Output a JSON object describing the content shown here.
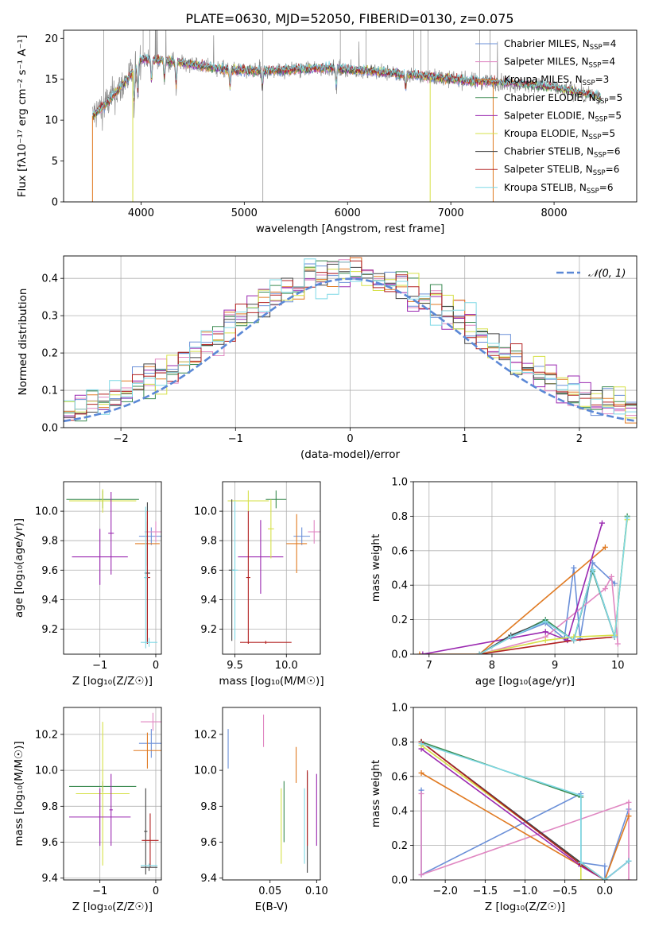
{
  "figure_title": "PLATE=0630, MJD=52050, FIBERID=0130, z=0.075",
  "colors": {
    "c0": "#6a8fd8",
    "c1": "#e087c2",
    "c2": "#e07a22",
    "c3": "#3a8a50",
    "c4": "#9a28b0",
    "c5": "#d6e048",
    "c6": "#444444",
    "c7": "#b22020",
    "c8": "#7fd9e6",
    "obs": "#888888",
    "gauss": "#5b88d6",
    "grid": "#b0b0b0"
  },
  "chart_data": [
    {
      "id": "spectrum",
      "type": "line",
      "title": "PLATE=0630, MJD=52050, FIBERID=0130, z=0.075",
      "xlabel": "wavelength [Angstrom, rest frame]",
      "ylabel": "Flux [fλ10⁻¹⁷ erg cm⁻² s⁻¹ A⁻¹]",
      "xlim": [
        3250,
        8800
      ],
      "ylim": [
        0,
        21
      ],
      "xticks": [
        4000,
        5000,
        6000,
        7000,
        8000
      ],
      "yticks": [
        0,
        5,
        10,
        15,
        20
      ],
      "grid": false,
      "legend_position": "top-right",
      "continuum_points": [
        [
          3530,
          10.5
        ],
        [
          3700,
          12.5
        ],
        [
          3900,
          15.5
        ],
        [
          4000,
          17.5
        ],
        [
          4300,
          17.2
        ],
        [
          4800,
          16.2
        ],
        [
          5200,
          16
        ],
        [
          5800,
          16.4
        ],
        [
          6300,
          15.9
        ],
        [
          6800,
          15.3
        ],
        [
          7200,
          14.8
        ],
        [
          7600,
          14.5
        ],
        [
          8000,
          14.0
        ],
        [
          8450,
          12.8
        ]
      ],
      "absorption_features": [
        [
          3934,
          4.0
        ],
        [
          3969,
          3.5
        ],
        [
          4102,
          2.5
        ],
        [
          4227,
          2.0
        ],
        [
          4340,
          2.8
        ],
        [
          4861,
          2.0
        ],
        [
          5175,
          2.0
        ],
        [
          5890,
          2.0
        ],
        [
          6563,
          1.5
        ]
      ],
      "bad_pixels": [
        3530,
        3920,
        6800,
        7410
      ],
      "series": [
        {
          "name": "Chabrier MILES",
          "nssp": "4",
          "color_key": "c0",
          "library": "MILES"
        },
        {
          "name": "Salpeter MILES",
          "nssp": "4",
          "color_key": "c1",
          "library": "MILES"
        },
        {
          "name": "Kroupa MILES",
          "nssp": "3",
          "color_key": "c2",
          "library": "MILES"
        },
        {
          "name": "Chabrier ELODIE",
          "nssp": "5",
          "color_key": "c3",
          "library": "ELODIE"
        },
        {
          "name": "Salpeter ELODIE",
          "nssp": "5",
          "color_key": "c4",
          "library": "ELODIE"
        },
        {
          "name": "Kroupa ELODIE",
          "nssp": "5",
          "color_key": "c5",
          "library": "ELODIE"
        },
        {
          "name": "Chabrier STELIB",
          "nssp": "6",
          "color_key": "c6",
          "library": "STELIB"
        },
        {
          "name": "Salpeter STELIB",
          "nssp": "6",
          "color_key": "c7",
          "library": "STELIB"
        },
        {
          "name": "Kroupa STELIB",
          "nssp": "6",
          "color_key": "c8",
          "library": "STELIB"
        }
      ]
    },
    {
      "id": "residuals",
      "type": "step",
      "xlabel": "(data-model)/error",
      "ylabel": "Normed distribution",
      "xlim": [
        -2.5,
        2.5
      ],
      "ylim": [
        0,
        0.46
      ],
      "xticks": [
        -2,
        -1,
        0,
        1,
        2
      ],
      "yticks": [
        0.0,
        0.1,
        0.2,
        0.3,
        0.4
      ],
      "grid": true,
      "bin_width": 0.1,
      "legend": "𝒩(0, 1)",
      "legend_position": "top-right"
    },
    {
      "id": "age_vs_Z",
      "type": "errorbar",
      "xlabel": "Z [log₁₀(Z/Z☉)]",
      "ylabel": "age  [log₁₀(age/yr)]",
      "xlim": [
        -1.65,
        0.1
      ],
      "ylim": [
        9.03,
        10.2
      ],
      "xticks": [
        -1,
        0
      ],
      "yticks": [
        9.2,
        9.4,
        9.6,
        9.8,
        10.0
      ],
      "grid": true,
      "points": [
        {
          "c": "c0",
          "x": -0.08,
          "xerr": 0.22,
          "y": 9.83,
          "yerr": 0.06
        },
        {
          "c": "c1",
          "x": 0.0,
          "xerr": 0.2,
          "y": 9.86,
          "yerr": 0.07
        },
        {
          "c": "c2",
          "x": -0.15,
          "xerr": 0.22,
          "y": 9.78,
          "yerr": 0.15
        },
        {
          "c": "c3",
          "x": -0.95,
          "xerr": 0.65,
          "y": 10.08,
          "yerr": 0.06
        },
        {
          "c": "c4",
          "x": -1.0,
          "xerr": 0.5,
          "y": 9.69,
          "yerr": 0.19
        },
        {
          "c": "c5",
          "x": -0.95,
          "xerr": 0.6,
          "y": 10.07,
          "yerr": 0.08
        },
        {
          "c": "c4",
          "x": -0.8,
          "xerr": 0.05,
          "y": 9.85,
          "yerr": 0.28
        },
        {
          "c": "c6",
          "x": -0.15,
          "xerr": 0.05,
          "y": 9.58,
          "yerr": 0.48
        },
        {
          "c": "c7",
          "x": -0.15,
          "xerr": 0.05,
          "y": 9.55,
          "yerr": 0.45
        },
        {
          "c": "c8",
          "x": -0.12,
          "xerr": 0.15,
          "y": 9.11,
          "yerr": 0.03
        },
        {
          "c": "c8",
          "x": -0.18,
          "xerr": 0.03,
          "y": 9.55,
          "yerr": 0.48
        }
      ]
    },
    {
      "id": "age_vs_mass",
      "type": "errorbar",
      "xlabel": "mass [log₁₀(M/M☉)]",
      "ylabel": "",
      "xlim": [
        9.38,
        10.33
      ],
      "ylim": [
        9.03,
        10.2
      ],
      "xticks": [
        9.5,
        10.0
      ],
      "yticks": [
        9.2,
        9.4,
        9.6,
        9.8,
        10.0
      ],
      "grid": true,
      "points": [
        {
          "c": "c0",
          "x": 10.15,
          "xerr": 0.08,
          "y": 9.83,
          "yerr": 0.06
        },
        {
          "c": "c1",
          "x": 10.27,
          "xerr": 0.06,
          "y": 9.86,
          "yerr": 0.08
        },
        {
          "c": "c2",
          "x": 10.1,
          "xerr": 0.1,
          "y": 9.78,
          "yerr": 0.2
        },
        {
          "c": "c3",
          "x": 9.9,
          "xerr": 0.1,
          "y": 10.08,
          "yerr": 0.06
        },
        {
          "c": "c4",
          "x": 9.75,
          "xerr": 0.22,
          "y": 9.69,
          "yerr": 0.25
        },
        {
          "c": "c5",
          "x": 9.63,
          "xerr": 0.2,
          "y": 10.07,
          "yerr": 0.07
        },
        {
          "c": "c5",
          "x": 9.85,
          "xerr": 0.03,
          "y": 9.88,
          "yerr": 0.2
        },
        {
          "c": "c6",
          "x": 9.47,
          "xerr": 0.03,
          "y": 9.6,
          "yerr": 0.48
        },
        {
          "c": "c7",
          "x": 9.63,
          "xerr": 0.02,
          "y": 9.55,
          "yerr": 0.45
        },
        {
          "c": "c7",
          "x": 9.8,
          "xerr": 0.25,
          "y": 9.11,
          "yerr": 0.01
        },
        {
          "c": "c8",
          "x": 9.5,
          "xerr": 0.03,
          "y": 9.6,
          "yerr": 0.47
        }
      ]
    },
    {
      "id": "weight_vs_age",
      "type": "line",
      "xlabel": "age  [log₁₀(age/yr)]",
      "ylabel": "mass weight",
      "xlim": [
        6.75,
        10.3
      ],
      "ylim": [
        0,
        1.0
      ],
      "xticks": [
        7,
        8,
        9,
        10
      ],
      "yticks": [
        0.0,
        0.2,
        0.4,
        0.6,
        0.8,
        1.0
      ],
      "grid": true,
      "series": [
        {
          "c": "c0",
          "x": [
            7.8,
            8.3,
            8.85,
            9.15,
            9.3,
            9.4,
            9.6,
            9.95
          ],
          "y": [
            0.0,
            0.1,
            0.18,
            0.09,
            0.5,
            0.09,
            0.53,
            0.41
          ]
        },
        {
          "c": "c1",
          "x": [
            7.8,
            8.85,
            9.8,
            9.9,
            10.0
          ],
          "y": [
            0.0,
            0.1,
            0.38,
            0.45,
            0.06
          ]
        },
        {
          "c": "c2",
          "x": [
            6.85,
            7.8,
            9.8
          ],
          "y": [
            0.0,
            0.0,
            0.62
          ]
        },
        {
          "c": "c3",
          "x": [
            7.8,
            8.3,
            8.85,
            9.3,
            9.6,
            9.95,
            10.15
          ],
          "y": [
            0.0,
            0.1,
            0.2,
            0.08,
            0.48,
            0.1,
            0.8
          ]
        },
        {
          "c": "c4",
          "x": [
            6.9,
            8.85,
            9.2,
            9.75
          ],
          "y": [
            0.0,
            0.13,
            0.08,
            0.76
          ]
        },
        {
          "c": "c5",
          "x": [
            7.8,
            8.85,
            9.3,
            9.95,
            10.15
          ],
          "y": [
            0.0,
            0.08,
            0.1,
            0.11,
            0.78
          ]
        },
        {
          "c": "c6",
          "x": [
            7.8,
            8.3,
            8.85,
            9.3,
            9.6,
            9.95
          ],
          "y": [
            0.0,
            0.11,
            0.19,
            0.08,
            0.49,
            0.1
          ]
        },
        {
          "c": "c7",
          "x": [
            7.8,
            9.3,
            9.95
          ],
          "y": [
            0.0,
            0.08,
            0.1
          ]
        },
        {
          "c": "c8",
          "x": [
            7.8,
            8.3,
            8.85,
            9.3,
            9.6,
            9.95,
            10.15
          ],
          "y": [
            0.0,
            0.1,
            0.19,
            0.08,
            0.49,
            0.1,
            0.79
          ]
        }
      ]
    },
    {
      "id": "mass_vs_Z",
      "type": "errorbar",
      "xlabel": "Z [log₁₀(Z/Z☉)]",
      "ylabel": "mass [log₁₀(M/M☉)]",
      "xlim": [
        -1.65,
        0.1
      ],
      "ylim": [
        9.39,
        10.35
      ],
      "xticks": [
        -1,
        0
      ],
      "yticks": [
        9.4,
        9.6,
        9.8,
        10.0,
        10.2
      ],
      "grid": true,
      "points": [
        {
          "c": "c0",
          "x": -0.08,
          "xerr": 0.22,
          "y": 10.15,
          "yerr": 0.08
        },
        {
          "c": "c1",
          "x": -0.05,
          "xerr": 0.22,
          "y": 10.27,
          "yerr": 0.05
        },
        {
          "c": "c2",
          "x": -0.15,
          "xerr": 0.25,
          "y": 10.11,
          "yerr": 0.1
        },
        {
          "c": "c3",
          "x": -0.95,
          "xerr": 0.6,
          "y": 9.91,
          "yerr": 0.03
        },
        {
          "c": "c5",
          "x": -0.95,
          "xerr": 0.48,
          "y": 9.87,
          "yerr": 0.4
        },
        {
          "c": "c4",
          "x": -1.0,
          "xerr": 0.55,
          "y": 9.74,
          "yerr": 0.16
        },
        {
          "c": "c4",
          "x": -0.8,
          "xerr": 0.03,
          "y": 9.78,
          "yerr": 0.2
        },
        {
          "c": "c6",
          "x": -0.12,
          "xerr": 0.15,
          "y": 9.46,
          "yerr": 0.02
        },
        {
          "c": "c6",
          "x": -0.18,
          "xerr": 0.03,
          "y": 9.66,
          "yerr": 0.24
        },
        {
          "c": "c7",
          "x": -0.1,
          "xerr": 0.15,
          "y": 9.61,
          "yerr": 0.15
        },
        {
          "c": "c8",
          "x": -0.12,
          "xerr": 0.15,
          "y": 9.47,
          "yerr": 0.01
        }
      ]
    },
    {
      "id": "mass_vs_EBV",
      "type": "errorbar",
      "xlabel": "E(B-V)",
      "ylabel": "",
      "xlim": [
        -0.001,
        0.104
      ],
      "ylim": [
        9.39,
        10.35
      ],
      "xticks": [
        0.05,
        0.1
      ],
      "yticks": [
        9.4,
        9.6,
        9.8,
        10.0,
        10.2
      ],
      "grid": false,
      "points": [
        {
          "c": "c0",
          "x": 0.005,
          "xerr": 0.0,
          "y": 10.12,
          "yerr": 0.11
        },
        {
          "c": "c1",
          "x": 0.043,
          "xerr": 0.0,
          "y": 10.22,
          "yerr": 0.09
        },
        {
          "c": "c2",
          "x": 0.078,
          "xerr": 0.0,
          "y": 10.03,
          "yerr": 0.1
        },
        {
          "c": "c3",
          "x": 0.065,
          "xerr": 0.0,
          "y": 9.77,
          "yerr": 0.17
        },
        {
          "c": "c5",
          "x": 0.062,
          "xerr": 0.0,
          "y": 9.69,
          "yerr": 0.21
        },
        {
          "c": "c8",
          "x": 0.087,
          "xerr": 0.0,
          "y": 9.69,
          "yerr": 0.21
        },
        {
          "c": "c6",
          "x": 0.09,
          "xerr": 0.0,
          "y": 9.71,
          "yerr": 0.28
        },
        {
          "c": "c7",
          "x": 0.09,
          "xerr": 0.0,
          "y": 9.79,
          "yerr": 0.21
        },
        {
          "c": "c4",
          "x": 0.1,
          "xerr": 0.0,
          "y": 9.78,
          "yerr": 0.2
        }
      ]
    },
    {
      "id": "weight_vs_Z",
      "type": "line",
      "xlabel": "Z [log₁₀(Z/Z☉)]",
      "ylabel": "mass weight",
      "xlim": [
        -2.4,
        0.4
      ],
      "ylim": [
        0,
        1.0
      ],
      "xticks": [
        -2.0,
        -1.5,
        -1.0,
        -0.5,
        0.0
      ],
      "yticks": [
        0.0,
        0.2,
        0.4,
        0.6,
        0.8,
        1.0
      ],
      "grid": true,
      "series": [
        {
          "c": "c0",
          "x": [
            -2.3,
            -2.3,
            -0.3,
            -0.3,
            0.0,
            0.0,
            0.3
          ],
          "y": [
            0.52,
            0.03,
            0.5,
            0.1,
            0.08,
            0.0,
            0.41
          ]
        },
        {
          "c": "c1",
          "x": [
            -2.3,
            -2.3,
            0.3,
            0.3
          ],
          "y": [
            0.5,
            0.03,
            0.45,
            0.0
          ]
        },
        {
          "c": "c2",
          "x": [
            -2.3,
            0.0,
            0.3
          ],
          "y": [
            0.62,
            0.0,
            0.37
          ]
        },
        {
          "c": "c3",
          "x": [
            -2.3,
            -0.3,
            -0.3,
            0.0
          ],
          "y": [
            0.8,
            0.48,
            0.1,
            0.0
          ]
        },
        {
          "c": "c4",
          "x": [
            -2.3,
            -0.3,
            0.0,
            0.3
          ],
          "y": [
            0.76,
            0.08,
            0.0,
            0.11
          ]
        },
        {
          "c": "c5",
          "x": [
            -2.3,
            -0.3,
            -0.3,
            0.0
          ],
          "y": [
            0.78,
            0.1,
            0.0,
            0.0
          ]
        },
        {
          "c": "c6",
          "x": [
            -2.3,
            -0.3,
            0.0,
            0.3
          ],
          "y": [
            0.8,
            0.1,
            0.0,
            0.11
          ]
        },
        {
          "c": "c7",
          "x": [
            -2.3,
            -0.3,
            0.0
          ],
          "y": [
            0.8,
            0.09,
            0.0
          ]
        },
        {
          "c": "c8",
          "x": [
            -2.3,
            -0.3,
            -0.3,
            0.0,
            0.3
          ],
          "y": [
            0.79,
            0.49,
            0.1,
            0.0,
            0.11
          ]
        }
      ]
    }
  ]
}
